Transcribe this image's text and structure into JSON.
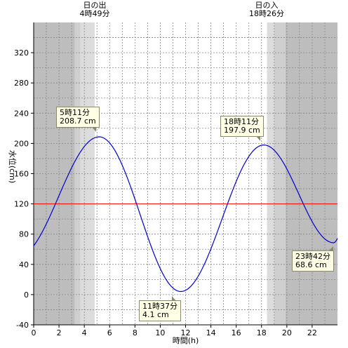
{
  "sunrise": {
    "label": "日の出",
    "time": "4時49分"
  },
  "sunset": {
    "label": "日の入",
    "time": "18時26分"
  },
  "chart_data": {
    "type": "line",
    "xlabel": "時間(h)",
    "ylabel": "水位(cm)",
    "xlim": [
      0,
      24
    ],
    "ylim": [
      -40,
      360
    ],
    "xticks": [
      0,
      2,
      4,
      6,
      8,
      10,
      12,
      14,
      16,
      18,
      20,
      22
    ],
    "yticks": [
      -40,
      0,
      40,
      80,
      120,
      160,
      200,
      240,
      280,
      320
    ],
    "grid": true,
    "reference_line": {
      "value": 120,
      "color": "#ff0000"
    },
    "twilight": {
      "night_end": 3.25,
      "civil_dawn_end": 3.7,
      "sunrise": 4.82,
      "sunset": 18.43,
      "civil_dusk_start": 19.0,
      "night_start": 19.9
    },
    "series": [
      {
        "color": "#0000cc",
        "extremes": [
          {
            "hour": 5.18,
            "value": 208.7,
            "time_label": "5時11分",
            "value_label": "208.7 cm"
          },
          {
            "hour": 11.62,
            "value": 4.1,
            "time_label": "11時37分",
            "value_label": "4.1 cm"
          },
          {
            "hour": 18.18,
            "value": 197.9,
            "time_label": "18時11分",
            "value_label": "197.9 cm"
          },
          {
            "hour": 23.7,
            "value": 68.6,
            "time_label": "23時42分",
            "value_label": "68.6 cm"
          }
        ],
        "start": {
          "hour": 0,
          "value": 66
        },
        "end": {
          "hour": 24,
          "value": 69
        }
      }
    ],
    "colors": {
      "night": "#bdbdbd",
      "twilight": "#dcdcdc",
      "day": "#ffffff",
      "grid": "#888888"
    }
  }
}
